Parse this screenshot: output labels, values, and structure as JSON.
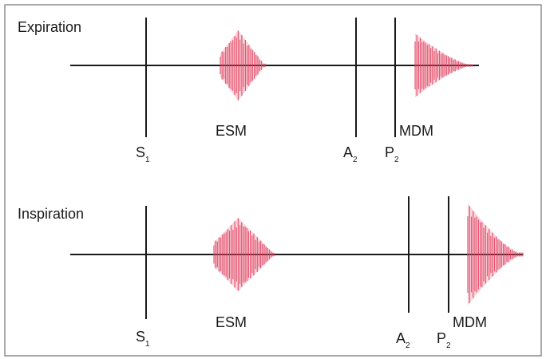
{
  "panels": [
    {
      "id": "expiration",
      "title": "Expiration",
      "events": [
        {
          "key": "s1",
          "label": "S",
          "sub": "1"
        },
        {
          "key": "esm",
          "label": "ESM"
        },
        {
          "key": "a2",
          "label": "A",
          "sub": "2"
        },
        {
          "key": "p2",
          "label": "P",
          "sub": "2"
        },
        {
          "key": "mdm",
          "label": "MDM"
        }
      ]
    },
    {
      "id": "inspiration",
      "title": "Inspiration",
      "events": [
        {
          "key": "s1",
          "label": "S",
          "sub": "1"
        },
        {
          "key": "esm",
          "label": "ESM"
        },
        {
          "key": "a2",
          "label": "A",
          "sub": "2"
        },
        {
          "key": "p2",
          "label": "P",
          "sub": "2"
        },
        {
          "key": "mdm",
          "label": "MDM"
        }
      ]
    }
  ],
  "colors": {
    "line": "#1a1a1a",
    "murmur": "#e0405e",
    "frame": "#555555"
  }
}
